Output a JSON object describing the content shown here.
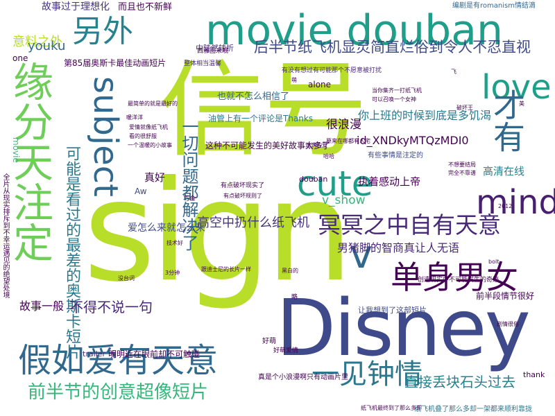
{
  "words": [
    {
      "text": "信号",
      "color": "#b8de29"
    },
    {
      "text": "sign",
      "color": "#b8de29"
    },
    {
      "text": "Disney",
      "color": "#3e4a89"
    },
    {
      "text": "缘分天注定",
      "color": "#6ece58"
    },
    {
      "text": "movie douban",
      "color": "#1f9e89"
    },
    {
      "text": "假如爱有天意",
      "color": "#31688e"
    },
    {
      "text": "单身男女",
      "color": "#440154"
    },
    {
      "text": "另外",
      "color": "#26828e"
    },
    {
      "text": "subject",
      "color": "#31688e"
    },
    {
      "text": "cute",
      "color": "#1f9e89"
    },
    {
      "text": "love",
      "color": "#1f9e89"
    },
    {
      "text": "mind",
      "color": "#481f70"
    },
    {
      "text": "才有",
      "color": "#31688e"
    },
    {
      "text": "v",
      "color": "#31688e"
    },
    {
      "text": "一见钟情",
      "color": "#2a788e"
    },
    {
      "text": "前半节的创意超像短片",
      "color": "#35b779"
    },
    {
      "text": "冥冥之中自有天意",
      "color": "#482878"
    },
    {
      "text": "可能是看过的最差的奥斯卡短片",
      "color": "#2a788e"
    },
    {
      "text": "一切问题都解决了",
      "color": "#31688e"
    },
    {
      "text": "后半节纸飞机显灵简直烂俗到令人不忍直视",
      "color": "#3e4a89"
    },
    {
      "text": "高空中扔什么纸飞机",
      "color": "#46337e"
    },
    {
      "text": "男猪脚的智商真让人无语",
      "color": "#482878"
    },
    {
      "text": "直接丢块石头过去",
      "color": "#26828e"
    },
    {
      "text": "不得不说一句",
      "color": "#482878"
    },
    {
      "text": "故事一般",
      "color": "#440154"
    },
    {
      "text": "意料之外",
      "color": "#b8de29"
    },
    {
      "text": "youku",
      "color": "#31688e"
    },
    {
      "text": "第85届奥斯卡最佳动画短片",
      "color": "#440154"
    },
    {
      "text": "id_XNDkyMTQzMDI0",
      "color": "#440154"
    },
    {
      "text": "v_show",
      "color": "#35b779"
    },
    {
      "text": "你上班的时候到底是多饥渴",
      "color": "#2a788e"
    },
    {
      "text": "执着感动上帝",
      "color": "#440154"
    },
    {
      "text": "很浪漫",
      "color": "#440154"
    },
    {
      "text": "真好",
      "color": "#440154"
    },
    {
      "text": "爱怎么来就怎么来",
      "color": "#3e4a89"
    },
    {
      "text": "油管上有一个评论是Thanks",
      "color": "#2a788e"
    },
    {
      "text": "这种不可能发生的美好故事太多了",
      "color": "#440154"
    },
    {
      "text": "也就不怎么相信了",
      "color": "#31688e"
    },
    {
      "text": "故事过于理想化",
      "color": "#46337e"
    },
    {
      "text": "而且也不新鲜",
      "color": "#440154"
    },
    {
      "text": "高清在线",
      "color": "#26828e"
    },
    {
      "text": "前半段情节很好",
      "color": "#440154"
    },
    {
      "text": "让我想到了这部短片",
      "color": "#3e4a89"
    },
    {
      "text": "明明近在眼前却不可触碰",
      "color": "#440154"
    },
    {
      "text": "trailer",
      "color": "#482878"
    },
    {
      "text": "douban",
      "color": "#440154"
    },
    {
      "text": "alone",
      "color": "#440154"
    },
    {
      "text": "中陡然转折",
      "color": "#46337e"
    },
    {
      "text": "有没有想过有可能那个不愿意被打扰",
      "color": "#482878"
    },
    {
      "text": "纸飞机叠了那么多却一架都来顺利靠拢",
      "color": "#2a788e"
    },
    {
      "text": "编剧是有romanism情结滴",
      "color": "#31688e"
    },
    {
      "text": "真是个小浪漫啊只有动画片里",
      "color": "#440154"
    },
    {
      "text": "全片从现实排斥到不幸运遇见的绝望处境",
      "color": "#440154"
    },
    {
      "text": "有些事情是注定的",
      "color": "#3e4a89"
    },
    {
      "text": "创造现实中不可能发生的奇迹",
      "color": "#440154"
    },
    {
      "text": "one",
      "color": "#440154"
    },
    {
      "text": "movie",
      "color": "#35b779"
    },
    {
      "text": "Aw",
      "color": "#3e4a89"
    },
    {
      "text": "thank",
      "color": "#440154"
    },
    {
      "text": "好萌",
      "color": "#440154"
    },
    {
      "text": "好萌爱情",
      "color": "#440154"
    },
    {
      "text": "略",
      "color": "#440154"
    },
    {
      "text": "西雅图未眠",
      "color": "#440154"
    },
    {
      "text": "整体相当温馨",
      "color": "#482878"
    },
    {
      "text": "有点破坏现实了",
      "color": "#440154"
    },
    {
      "text": "有点破坏规则了",
      "color": "#440154"
    },
    {
      "text": "纸飞机最终到了那么多却",
      "color": "#440154"
    },
    {
      "text": "当你集齐一打纸飞机",
      "color": "#440154"
    },
    {
      "text": "可以召唤一个女神",
      "color": "#440154"
    },
    {
      "text": "原来在哪都有人宅",
      "color": "#440154"
    },
    {
      "text": "不想要结局",
      "color": "#440154"
    },
    {
      "text": "完全不靠谱",
      "color": "#440154"
    },
    {
      "text": "最简单的就是最好的",
      "color": "#440154"
    },
    {
      "text": "暖洋洋",
      "color": "#440154"
    },
    {
      "text": "爱情就像纸飞机",
      "color": "#440154"
    },
    {
      "text": "看的很舒服",
      "color": "#440154"
    },
    {
      "text": "一个温暖的小故事",
      "color": "#440154"
    },
    {
      "text": "跟迪士尼的长片一样",
      "color": "#440154"
    },
    {
      "text": "3分钟",
      "color": "#440154"
    },
    {
      "text": "黑白的",
      "color": "#440154"
    },
    {
      "text": "剧情很俗",
      "color": "#440154"
    },
    {
      "text": "破坏王",
      "color": "#440154"
    },
    {
      "text": "没台词",
      "color": "#440154"
    },
    {
      "text": "技术好",
      "color": "#440154"
    },
    {
      "text": "满满的爱",
      "color": "#440154"
    },
    {
      "text": "巧合",
      "color": "#440154"
    },
    {
      "text": "萌",
      "color": "#440154"
    },
    {
      "text": "哈哈",
      "color": "#440154"
    },
    {
      "text": "飞",
      "color": "#440154"
    },
    {
      "text": "美",
      "color": "#440154"
    },
    {
      "text": "2012",
      "color": "#440154"
    },
    {
      "text": "bolt",
      "color": "#440154"
    }
  ]
}
